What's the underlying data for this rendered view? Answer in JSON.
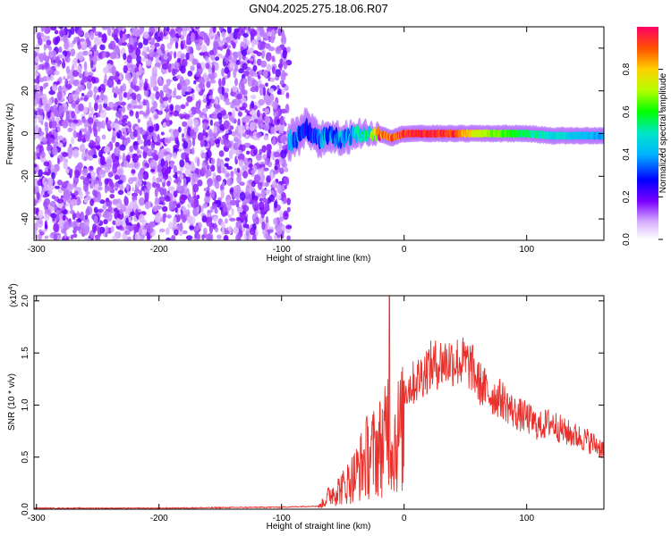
{
  "title": "GN04.2025.275.18.06.R07",
  "chart_data": [
    {
      "type": "heatmap",
      "xlabel": "Height of straight line (km)",
      "ylabel": "Frequency (Hz)",
      "xlim": [
        -302,
        163
      ],
      "ylim": [
        -50,
        50
      ],
      "x_ticks": [
        -300,
        -200,
        -100,
        0,
        100
      ],
      "x_tick_labels": [
        "-300",
        "-200",
        "-100",
        "0",
        "100"
      ],
      "y_ticks": [
        -40,
        -20,
        0,
        20,
        40
      ],
      "y_tick_labels": [
        "-40",
        "-20",
        "0",
        "20",
        "40"
      ],
      "noise_region_x": [
        -302,
        -94
      ],
      "signal_band": [
        {
          "x": -94,
          "freq": -4,
          "width": 9,
          "amp": 0.4
        },
        {
          "x": -85,
          "freq": -1,
          "width": 8,
          "amp": 0.35
        },
        {
          "x": -80,
          "freq": 3,
          "width": 8,
          "amp": 0.3
        },
        {
          "x": -70,
          "freq": -3,
          "width": 8,
          "amp": 0.35
        },
        {
          "x": -60,
          "freq": -1,
          "width": 7,
          "amp": 0.4
        },
        {
          "x": -50,
          "freq": -3,
          "width": 7,
          "amp": 0.4
        },
        {
          "x": -40,
          "freq": 0,
          "width": 6,
          "amp": 0.45
        },
        {
          "x": -30,
          "freq": 0,
          "width": 5,
          "amp": 0.55
        },
        {
          "x": -20,
          "freq": 0,
          "width": 4,
          "amp": 0.85
        },
        {
          "x": -10,
          "freq": -2,
          "width": 4,
          "amp": 0.9
        },
        {
          "x": 0,
          "freq": 0,
          "width": 4,
          "amp": 0.95
        },
        {
          "x": 20,
          "freq": 0,
          "width": 4,
          "amp": 1.0
        },
        {
          "x": 40,
          "freq": 0,
          "width": 4,
          "amp": 0.95
        },
        {
          "x": 60,
          "freq": 0,
          "width": 4,
          "amp": 0.75
        },
        {
          "x": 80,
          "freq": 0,
          "width": 4,
          "amp": 0.65
        },
        {
          "x": 100,
          "freq": 0,
          "width": 4,
          "amp": 0.55
        },
        {
          "x": 120,
          "freq": -1,
          "width": 4,
          "amp": 0.5
        },
        {
          "x": 140,
          "freq": -1,
          "width": 4,
          "amp": 0.45
        },
        {
          "x": 163,
          "freq": -1,
          "width": 4,
          "amp": 0.4
        }
      ]
    },
    {
      "type": "line",
      "xlabel": "Height of straight line (km)",
      "ylabel": "SNR (10 * v/v)",
      "y_scale_label": "(x10",
      "y_scale_exponent": "4",
      "y_scale_suffix": ")",
      "xlim": [
        -302,
        163
      ],
      "ylim": [
        0,
        2.05
      ],
      "x_ticks": [
        -300,
        -200,
        -100,
        0,
        100
      ],
      "x_tick_labels": [
        "-300",
        "-200",
        "-100",
        "0",
        "100"
      ],
      "y_ticks": [
        0,
        0.5,
        1.0,
        1.5,
        2.0
      ],
      "y_tick_labels": [
        "0.0",
        "0.5",
        "1.0",
        "1.5",
        "2.0"
      ],
      "color": "#e8312c",
      "series": [
        {
          "name": "SNR",
          "x": [
            -302,
            -200,
            -100,
            -70,
            -64,
            -60,
            -55,
            -50,
            -45,
            -40,
            -35,
            -30,
            -25,
            -20,
            -15,
            -12,
            -10,
            -5,
            0,
            10,
            20,
            30,
            40,
            50,
            55,
            60,
            70,
            80,
            90,
            100,
            110,
            120,
            130,
            140,
            150,
            163
          ],
          "y": [
            0.01,
            0.01,
            0.02,
            0.03,
            0.15,
            0.25,
            0.3,
            0.35,
            0.45,
            0.55,
            0.7,
            0.85,
            0.9,
            1.0,
            1.1,
            1.9,
            1.0,
            1.2,
            1.3,
            1.4,
            1.55,
            1.6,
            1.62,
            1.6,
            1.55,
            1.4,
            1.25,
            1.2,
            1.05,
            1.0,
            0.9,
            0.95,
            0.85,
            0.8,
            0.75,
            0.65
          ]
        }
      ]
    }
  ],
  "colorbar": {
    "label": "Normalized spectral amplitude",
    "ticks": [
      0.0,
      0.2,
      0.4,
      0.6,
      0.8
    ],
    "tick_labels": [
      "0.0",
      "0.2",
      "0.4",
      "0.6",
      "0.8"
    ]
  }
}
